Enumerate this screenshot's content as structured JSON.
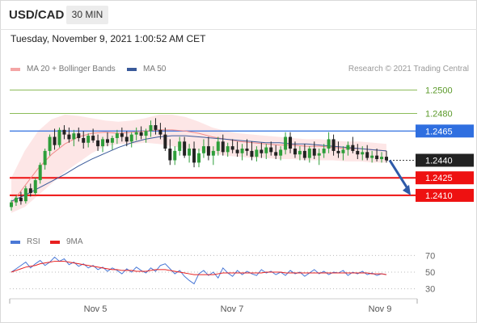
{
  "header": {
    "symbol": "USD/CAD",
    "interval": "30 MIN"
  },
  "timestamp": "Tuesday, November 9, 2021 1:00:52 AM CET",
  "legend": [
    {
      "label": "MA 20 + Bollinger Bands",
      "color": "#f4a5a5"
    },
    {
      "label": "MA 50",
      "color": "#3a5a9a"
    }
  ],
  "copyright": "Research © 2021 Trading Central",
  "chart_data": [
    {
      "type": "candlestick",
      "title": "",
      "x_ticks": [
        "Nov 5",
        "Nov 7",
        "Nov 9"
      ],
      "ylim": [
        1.2392,
        1.2508
      ],
      "price_levels": [
        {
          "value": 1.25,
          "label": "1.2500",
          "kind": "resistance",
          "color": "#7cb342"
        },
        {
          "value": 1.248,
          "label": "1.2480",
          "kind": "resistance",
          "color": "#7cb342"
        },
        {
          "value": 1.2465,
          "label": "1.2465",
          "kind": "pivot",
          "color": "#2f6fe0"
        },
        {
          "value": 1.244,
          "label": "1.2440",
          "kind": "last",
          "color": "#222222"
        },
        {
          "value": 1.2425,
          "label": "1.2425",
          "kind": "support",
          "color": "#ee1111"
        },
        {
          "value": 1.241,
          "label": "1.2410",
          "kind": "support",
          "color": "#ee1111"
        }
      ],
      "forecast": {
        "from": 1.244,
        "to": 1.241,
        "direction": "down"
      },
      "ma20_bollinger": {
        "ma": [
          1.2403,
          1.2418,
          1.2433,
          1.2445,
          1.2454,
          1.246,
          1.2463,
          1.2464,
          1.2463,
          1.2464,
          1.2465,
          1.2466,
          1.2466,
          1.2465,
          1.2463,
          1.246,
          1.2458,
          1.2456,
          1.2455,
          1.2454,
          1.2453,
          1.2453,
          1.2452,
          1.2452,
          1.2451,
          1.245,
          1.245,
          1.2449,
          1.2448
        ],
        "upper": [
          1.2425,
          1.2448,
          1.2465,
          1.2475,
          1.2479,
          1.2478,
          1.2476,
          1.2474,
          1.2473,
          1.2474,
          1.2476,
          1.2479,
          1.2479,
          1.2477,
          1.2473,
          1.2468,
          1.2465,
          1.2463,
          1.2462,
          1.2461,
          1.246,
          1.2459,
          1.2458,
          1.2458,
          1.2457,
          1.2456,
          1.2456,
          1.2455,
          1.2454
        ],
        "lower": [
          1.2395,
          1.24,
          1.241,
          1.242,
          1.243,
          1.2438,
          1.2446,
          1.2452,
          1.2454,
          1.2454,
          1.2455,
          1.2454,
          1.2452,
          1.245,
          1.2448,
          1.2446,
          1.2444,
          1.2443,
          1.2442,
          1.2442,
          1.2441,
          1.2441,
          1.244,
          1.244,
          1.244,
          1.2439,
          1.2439,
          1.2438,
          1.2438
        ]
      },
      "ma50": [
        1.2405,
        1.241,
        1.2416,
        1.2422,
        1.2428,
        1.2435,
        1.2441,
        1.2446,
        1.2451,
        1.2455,
        1.2458,
        1.246,
        1.2461,
        1.2461,
        1.246,
        1.2459,
        1.2458,
        1.2457,
        1.2456,
        1.2455,
        1.2455,
        1.2454,
        1.2454,
        1.2453,
        1.2452,
        1.2451,
        1.245,
        1.2449,
        1.2448
      ],
      "candles": [
        [
          1.24,
          1.2406,
          1.2397,
          1.2404
        ],
        [
          1.2404,
          1.241,
          1.2401,
          1.2408
        ],
        [
          1.2408,
          1.2413,
          1.2402,
          1.2405
        ],
        [
          1.2405,
          1.2418,
          1.2403,
          1.2416
        ],
        [
          1.2416,
          1.242,
          1.2409,
          1.2412
        ],
        [
          1.2412,
          1.2425,
          1.241,
          1.2423
        ],
        [
          1.2423,
          1.2438,
          1.242,
          1.2436
        ],
        [
          1.2436,
          1.245,
          1.2432,
          1.2448
        ],
        [
          1.2448,
          1.2462,
          1.2444,
          1.246
        ],
        [
          1.246,
          1.2467,
          1.2449,
          1.2453
        ],
        [
          1.2453,
          1.2468,
          1.2451,
          1.2466
        ],
        [
          1.2466,
          1.247,
          1.2458,
          1.2462
        ],
        [
          1.2462,
          1.2468,
          1.2455,
          1.2458
        ],
        [
          1.2458,
          1.2466,
          1.2452,
          1.2463
        ],
        [
          1.2463,
          1.2468,
          1.2456,
          1.2459
        ],
        [
          1.2459,
          1.2465,
          1.245,
          1.2455
        ],
        [
          1.2455,
          1.2463,
          1.2451,
          1.2461
        ],
        [
          1.2461,
          1.2467,
          1.2455,
          1.2457
        ],
        [
          1.2457,
          1.2462,
          1.2448,
          1.2452
        ],
        [
          1.2452,
          1.246,
          1.2447,
          1.2458
        ],
        [
          1.2458,
          1.2464,
          1.2452,
          1.2455
        ],
        [
          1.2455,
          1.2461,
          1.2449,
          1.2459
        ],
        [
          1.2459,
          1.2466,
          1.2454,
          1.2463
        ],
        [
          1.2463,
          1.2468,
          1.2456,
          1.246
        ],
        [
          1.246,
          1.2465,
          1.2452,
          1.2456
        ],
        [
          1.2456,
          1.2464,
          1.2451,
          1.2462
        ],
        [
          1.2462,
          1.2468,
          1.2457,
          1.2464
        ],
        [
          1.2464,
          1.2469,
          1.2458,
          1.2461
        ],
        [
          1.2461,
          1.2467,
          1.2455,
          1.2465
        ],
        [
          1.2465,
          1.2474,
          1.246,
          1.247
        ],
        [
          1.247,
          1.2476,
          1.2462,
          1.2466
        ],
        [
          1.2466,
          1.2472,
          1.2458,
          1.2462
        ],
        [
          1.2462,
          1.2468,
          1.2448,
          1.245
        ],
        [
          1.245,
          1.2458,
          1.2436,
          1.244
        ],
        [
          1.244,
          1.2452,
          1.2436,
          1.2448
        ],
        [
          1.2448,
          1.246,
          1.2444,
          1.2456
        ],
        [
          1.2456,
          1.246,
          1.2442,
          1.2444
        ],
        [
          1.2444,
          1.2454,
          1.2438,
          1.245
        ],
        [
          1.245,
          1.2456,
          1.2434,
          1.2438
        ],
        [
          1.2438,
          1.245,
          1.2434,
          1.2446
        ],
        [
          1.2446,
          1.2458,
          1.2442,
          1.2452
        ],
        [
          1.2452,
          1.246,
          1.244,
          1.2444
        ],
        [
          1.2444,
          1.2452,
          1.2436,
          1.2448
        ],
        [
          1.2448,
          1.246,
          1.2444,
          1.2456
        ],
        [
          1.2456,
          1.2462,
          1.2444,
          1.2447
        ],
        [
          1.2447,
          1.2455,
          1.2443,
          1.2452
        ],
        [
          1.2452,
          1.2458,
          1.2446,
          1.2449
        ],
        [
          1.2449,
          1.2456,
          1.2443,
          1.2446
        ],
        [
          1.2446,
          1.2454,
          1.244,
          1.245
        ],
        [
          1.245,
          1.2458,
          1.2444,
          1.2448
        ],
        [
          1.2448,
          1.2456,
          1.244,
          1.2443
        ],
        [
          1.2443,
          1.2452,
          1.2439,
          1.2449
        ],
        [
          1.2449,
          1.2455,
          1.2442,
          1.2446
        ],
        [
          1.2446,
          1.2454,
          1.2441,
          1.2451
        ],
        [
          1.2451,
          1.2456,
          1.2444,
          1.2447
        ],
        [
          1.2447,
          1.2453,
          1.2441,
          1.2444
        ],
        [
          1.2444,
          1.2452,
          1.244,
          1.2449
        ],
        [
          1.2449,
          1.2464,
          1.2445,
          1.246
        ],
        [
          1.246,
          1.2464,
          1.2446,
          1.245
        ],
        [
          1.245,
          1.2456,
          1.2442,
          1.2445
        ],
        [
          1.2445,
          1.2452,
          1.244,
          1.2448
        ],
        [
          1.2448,
          1.2454,
          1.244,
          1.2442
        ],
        [
          1.2442,
          1.2452,
          1.2438,
          1.245
        ],
        [
          1.245,
          1.2456,
          1.2441,
          1.2444
        ],
        [
          1.2444,
          1.245,
          1.2436,
          1.2446
        ],
        [
          1.2446,
          1.2454,
          1.2442,
          1.245
        ],
        [
          1.245,
          1.2464,
          1.2446,
          1.2458
        ],
        [
          1.2458,
          1.2462,
          1.2444,
          1.2448
        ],
        [
          1.2448,
          1.2456,
          1.2442,
          1.2446
        ],
        [
          1.2446,
          1.2452,
          1.244,
          1.2449
        ],
        [
          1.2449,
          1.2456,
          1.2444,
          1.2453
        ],
        [
          1.2453,
          1.246,
          1.2446,
          1.2448
        ],
        [
          1.2448,
          1.2454,
          1.2441,
          1.2445
        ],
        [
          1.2445,
          1.2452,
          1.244,
          1.2447
        ],
        [
          1.2447,
          1.2453,
          1.244,
          1.2442
        ],
        [
          1.2442,
          1.2448,
          1.2438,
          1.2444
        ],
        [
          1.2444,
          1.245,
          1.2439,
          1.2441
        ],
        [
          1.2441,
          1.2447,
          1.2438,
          1.2443
        ],
        [
          1.2443,
          1.2448,
          1.2438,
          1.244
        ]
      ]
    },
    {
      "type": "line",
      "title": "RSI",
      "series": [
        {
          "name": "RSI",
          "color": "#4a78d6",
          "values": [
            50,
            54,
            58,
            62,
            55,
            60,
            64,
            58,
            62,
            68,
            63,
            66,
            59,
            62,
            57,
            60,
            55,
            58,
            53,
            56,
            51,
            55,
            52,
            48,
            54,
            50,
            56,
            52,
            49,
            55,
            51,
            58,
            60,
            54,
            48,
            52,
            45,
            40,
            36,
            48,
            52,
            46,
            50,
            43,
            55,
            49,
            45,
            52,
            47,
            51,
            48,
            46,
            53,
            49,
            51,
            47,
            50,
            46,
            52,
            48,
            50,
            45,
            49,
            53,
            48,
            51,
            47,
            50,
            49,
            52,
            46,
            50,
            48,
            51,
            47,
            49,
            46,
            48,
            47
          ]
        },
        {
          "name": "9MA",
          "color": "#e82020",
          "values": [
            50,
            52,
            54,
            56,
            57,
            58,
            60,
            61,
            62,
            63,
            63,
            63,
            62,
            61,
            60,
            59,
            58,
            57,
            56,
            55,
            54,
            53,
            53,
            52,
            52,
            52,
            51,
            51,
            51,
            52,
            53,
            53,
            53,
            52,
            51,
            50,
            49,
            48,
            47,
            47,
            47,
            47,
            47,
            48,
            49,
            49,
            49,
            49,
            49,
            49,
            49,
            49,
            49,
            50,
            50,
            50,
            50,
            49,
            49,
            49,
            49,
            49,
            49,
            49,
            49,
            49,
            49,
            49,
            49,
            49,
            49,
            49,
            49,
            49,
            49,
            48,
            48,
            48,
            47
          ]
        }
      ],
      "y_ticks": [
        "70",
        "50",
        "30"
      ],
      "ylim": [
        20,
        80
      ]
    }
  ]
}
